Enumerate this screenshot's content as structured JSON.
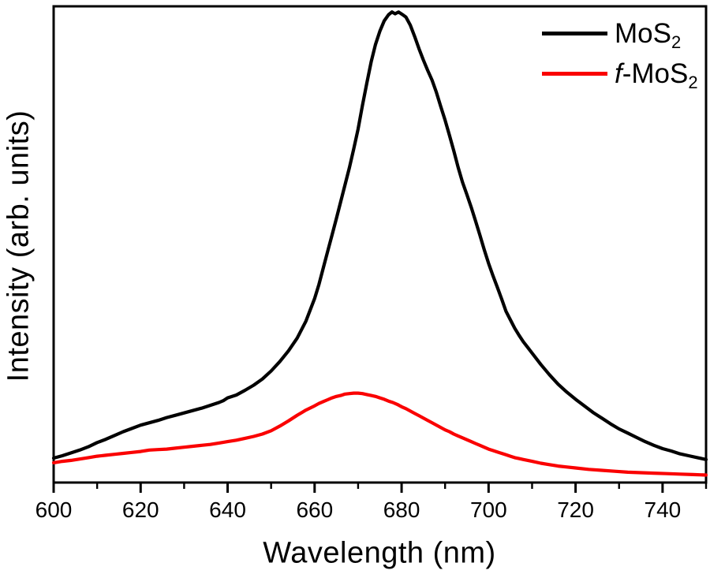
{
  "axes": {
    "xlabel": "Wavelength (nm)",
    "ylabel": "Intensity (arb. units)"
  },
  "legend": {
    "items": [
      {
        "prefix_italic": "",
        "main": "MoS",
        "sub": "2",
        "color": "#000000"
      },
      {
        "prefix_italic": "f",
        "main": "-MoS",
        "sub": "2",
        "color": "#fa0000"
      }
    ]
  },
  "chart_data": {
    "type": "line",
    "title": "",
    "xlabel": "Wavelength (nm)",
    "ylabel": "Intensity (arb. units)",
    "xlim": [
      600,
      750
    ],
    "ylim": [
      0,
      1.012
    ],
    "x_major_ticks": [
      600,
      620,
      640,
      660,
      680,
      700,
      720,
      740
    ],
    "x_minor_ticks": [
      610,
      630,
      650,
      670,
      690,
      710,
      730,
      750
    ],
    "y_ticks": [],
    "grid": false,
    "frame": "full-box",
    "legend_position": "top-right",
    "series": [
      {
        "id": "mos2",
        "name": "MoS₂",
        "color": "#000000",
        "line_width": 4.2,
        "points": [
          [
            600,
            0.052
          ],
          [
            602,
            0.057
          ],
          [
            604,
            0.063
          ],
          [
            606,
            0.069
          ],
          [
            608,
            0.076
          ],
          [
            610,
            0.085
          ],
          [
            612,
            0.092
          ],
          [
            614,
            0.1
          ],
          [
            616,
            0.108
          ],
          [
            618,
            0.115
          ],
          [
            620,
            0.122
          ],
          [
            622,
            0.127
          ],
          [
            624,
            0.132
          ],
          [
            626,
            0.138
          ],
          [
            628,
            0.143
          ],
          [
            630,
            0.148
          ],
          [
            632,
            0.153
          ],
          [
            634,
            0.158
          ],
          [
            636,
            0.164
          ],
          [
            638,
            0.17
          ],
          [
            639,
            0.174
          ],
          [
            640,
            0.18
          ],
          [
            642,
            0.186
          ],
          [
            644,
            0.196
          ],
          [
            646,
            0.207
          ],
          [
            648,
            0.22
          ],
          [
            650,
            0.237
          ],
          [
            652,
            0.257
          ],
          [
            654,
            0.28
          ],
          [
            656,
            0.307
          ],
          [
            658,
            0.343
          ],
          [
            660,
            0.391
          ],
          [
            661,
            0.421
          ],
          [
            662,
            0.456
          ],
          [
            663,
            0.491
          ],
          [
            664,
            0.526
          ],
          [
            665,
            0.561
          ],
          [
            666,
            0.597
          ],
          [
            667,
            0.633
          ],
          [
            668,
            0.669
          ],
          [
            669,
            0.709
          ],
          [
            670,
            0.751
          ],
          [
            671,
            0.801
          ],
          [
            672,
            0.849
          ],
          [
            673,
            0.894
          ],
          [
            674,
            0.931
          ],
          [
            675,
            0.959
          ],
          [
            676,
            0.981
          ],
          [
            677,
            0.994
          ],
          [
            677.8,
            1.0
          ],
          [
            678.5,
            0.996
          ],
          [
            679.3,
            1.0
          ],
          [
            680.1,
            0.995
          ],
          [
            681,
            0.989
          ],
          [
            682,
            0.972
          ],
          [
            683,
            0.948
          ],
          [
            684,
            0.922
          ],
          [
            685,
            0.898
          ],
          [
            686,
            0.876
          ],
          [
            687,
            0.855
          ],
          [
            688,
            0.829
          ],
          [
            689,
            0.799
          ],
          [
            690,
            0.77
          ],
          [
            691,
            0.738
          ],
          [
            692,
            0.705
          ],
          [
            693,
            0.67
          ],
          [
            694,
            0.638
          ],
          [
            695,
            0.612
          ],
          [
            696,
            0.585
          ],
          [
            697,
            0.556
          ],
          [
            698,
            0.526
          ],
          [
            699,
            0.495
          ],
          [
            700,
            0.466
          ],
          [
            701,
            0.44
          ],
          [
            702,
            0.415
          ],
          [
            703,
            0.39
          ],
          [
            704,
            0.364
          ],
          [
            705,
            0.346
          ],
          [
            706,
            0.328
          ],
          [
            707,
            0.313
          ],
          [
            708,
            0.299
          ],
          [
            709,
            0.287
          ],
          [
            710,
            0.275
          ],
          [
            712,
            0.251
          ],
          [
            714,
            0.229
          ],
          [
            716,
            0.209
          ],
          [
            718,
            0.192
          ],
          [
            720,
            0.177
          ],
          [
            722,
            0.163
          ],
          [
            724,
            0.149
          ],
          [
            726,
            0.137
          ],
          [
            728,
            0.125
          ],
          [
            730,
            0.114
          ],
          [
            732,
            0.105
          ],
          [
            734,
            0.096
          ],
          [
            736,
            0.087
          ],
          [
            738,
            0.079
          ],
          [
            740,
            0.072
          ],
          [
            742,
            0.067
          ],
          [
            744,
            0.061
          ],
          [
            746,
            0.057
          ],
          [
            748,
            0.053
          ],
          [
            750,
            0.049
          ]
        ]
      },
      {
        "id": "f-mos2",
        "name": "f-MoS₂",
        "color": "#fa0000",
        "line_width": 4.2,
        "points": [
          [
            600,
            0.042
          ],
          [
            602,
            0.045
          ],
          [
            604,
            0.047
          ],
          [
            606,
            0.05
          ],
          [
            608,
            0.053
          ],
          [
            610,
            0.056
          ],
          [
            612,
            0.058
          ],
          [
            614,
            0.06
          ],
          [
            616,
            0.062
          ],
          [
            618,
            0.064
          ],
          [
            620,
            0.066
          ],
          [
            622,
            0.069
          ],
          [
            624,
            0.07
          ],
          [
            626,
            0.071
          ],
          [
            628,
            0.073
          ],
          [
            630,
            0.075
          ],
          [
            632,
            0.077
          ],
          [
            634,
            0.079
          ],
          [
            636,
            0.081
          ],
          [
            638,
            0.084
          ],
          [
            640,
            0.087
          ],
          [
            642,
            0.09
          ],
          [
            644,
            0.094
          ],
          [
            646,
            0.098
          ],
          [
            648,
            0.103
          ],
          [
            650,
            0.11
          ],
          [
            652,
            0.12
          ],
          [
            654,
            0.131
          ],
          [
            656,
            0.143
          ],
          [
            658,
            0.154
          ],
          [
            660,
            0.163
          ],
          [
            661,
            0.168
          ],
          [
            662,
            0.172
          ],
          [
            663,
            0.176
          ],
          [
            664,
            0.18
          ],
          [
            665,
            0.183
          ],
          [
            666,
            0.185
          ],
          [
            667,
            0.188
          ],
          [
            668,
            0.189
          ],
          [
            669,
            0.19
          ],
          [
            670,
            0.19
          ],
          [
            671,
            0.189
          ],
          [
            672,
            0.187
          ],
          [
            673,
            0.185
          ],
          [
            674,
            0.183
          ],
          [
            675,
            0.18
          ],
          [
            676,
            0.177
          ],
          [
            677,
            0.173
          ],
          [
            678,
            0.17
          ],
          [
            679,
            0.166
          ],
          [
            680,
            0.161
          ],
          [
            681,
            0.157
          ],
          [
            682,
            0.152
          ],
          [
            683,
            0.147
          ],
          [
            684,
            0.142
          ],
          [
            685,
            0.137
          ],
          [
            686,
            0.132
          ],
          [
            687,
            0.127
          ],
          [
            688,
            0.122
          ],
          [
            689,
            0.117
          ],
          [
            690,
            0.112
          ],
          [
            691,
            0.108
          ],
          [
            692,
            0.103
          ],
          [
            693,
            0.099
          ],
          [
            694,
            0.095
          ],
          [
            695,
            0.091
          ],
          [
            696,
            0.087
          ],
          [
            697,
            0.083
          ],
          [
            698,
            0.079
          ],
          [
            699,
            0.075
          ],
          [
            700,
            0.071
          ],
          [
            701,
            0.068
          ],
          [
            702,
            0.065
          ],
          [
            703,
            0.062
          ],
          [
            704,
            0.059
          ],
          [
            705,
            0.056
          ],
          [
            706,
            0.053
          ],
          [
            707,
            0.051
          ],
          [
            708,
            0.049
          ],
          [
            709,
            0.047
          ],
          [
            710,
            0.045
          ],
          [
            712,
            0.041
          ],
          [
            714,
            0.038
          ],
          [
            716,
            0.035
          ],
          [
            718,
            0.033
          ],
          [
            720,
            0.031
          ],
          [
            723,
            0.028
          ],
          [
            726,
            0.026
          ],
          [
            729,
            0.024
          ],
          [
            732,
            0.022
          ],
          [
            735,
            0.021
          ],
          [
            738,
            0.02
          ],
          [
            741,
            0.019
          ],
          [
            744,
            0.018
          ],
          [
            747,
            0.017
          ],
          [
            750,
            0.016
          ]
        ]
      }
    ]
  }
}
